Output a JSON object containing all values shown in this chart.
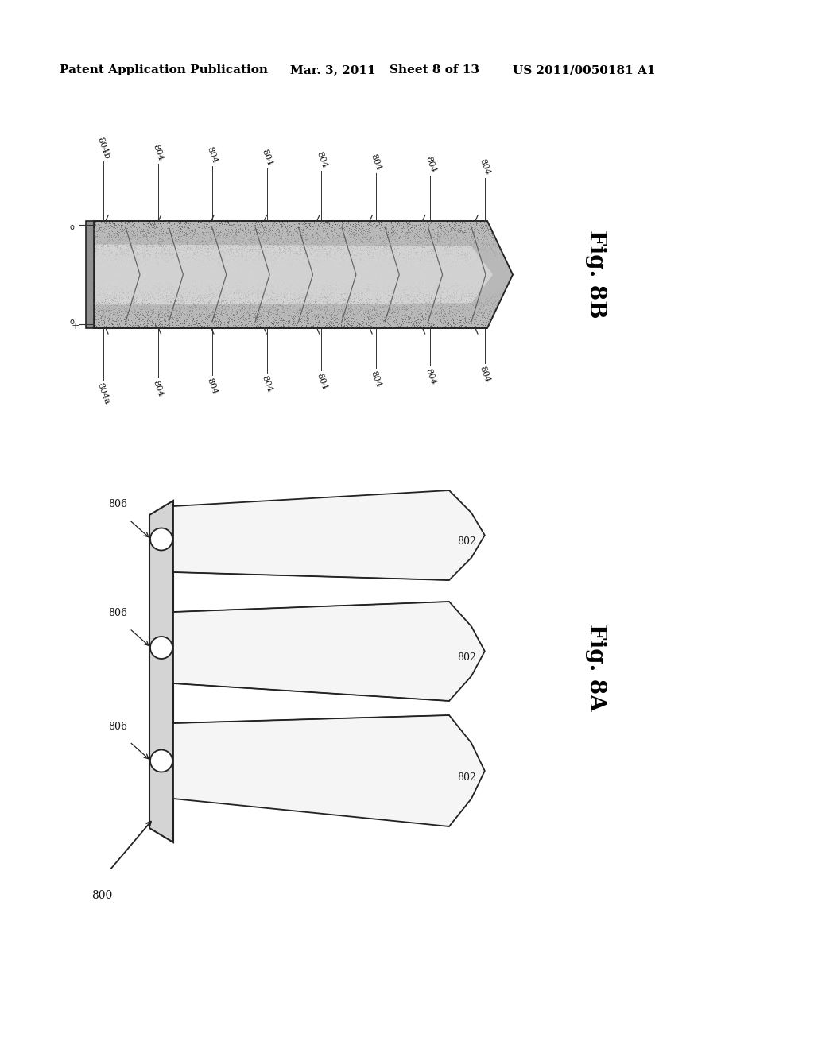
{
  "bg_color": "#ffffff",
  "header_text": "Patent Application Publication",
  "header_date": "Mar. 3, 2011",
  "header_sheet": "Sheet 8 of 13",
  "header_patent": "US 2011/0050181 A1",
  "fig8b_label": "Fig. 8B",
  "fig8a_label": "Fig. 8A",
  "label_800": "800",
  "label_802": "802",
  "label_806": "806",
  "label_804": "804",
  "label_804a": "804a",
  "label_804b": "804b",
  "fig8b_top_labels": [
    "804b",
    "804",
    "804",
    "804",
    "804",
    "804",
    "804",
    "804"
  ],
  "fig8b_bot_labels": [
    "804a",
    "804",
    "804",
    "804",
    "804",
    "804",
    "804",
    "804"
  ]
}
